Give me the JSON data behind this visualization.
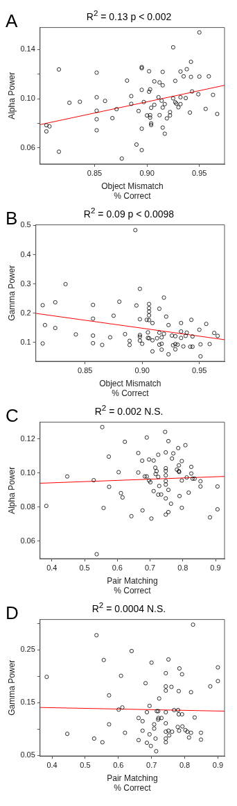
{
  "chart_data": [
    {
      "type": "scatter",
      "title": "R$^{2}$ = 0.13 p < 0.002",
      "annotations": [
        "A"
      ],
      "xlabel": "Object Mismatch\n% Correct",
      "ylabel": "Alpha Power",
      "xlim": [
        0.798,
        0.974
      ],
      "ylim": [
        0.047,
        0.158
      ],
      "xticks": [
        {
          "value": 0.85,
          "label": "0.85"
        },
        {
          "value": 0.9,
          "label": "0.90"
        },
        {
          "value": 0.95,
          "label": "0.95"
        }
      ],
      "yticks": [
        {
          "value": 0.06,
          "label": "0.06"
        },
        {
          "value": 0.08,
          "label": null
        },
        {
          "value": 0.1,
          "label": "0.10"
        },
        {
          "value": 0.12,
          "label": null
        },
        {
          "value": 0.14,
          "label": "0.14"
        }
      ],
      "series": [
        {
          "color": "#000000",
          "marker": "circle",
          "x": [
            0.804,
            0.804,
            0.807,
            0.816,
            0.816,
            0.826,
            0.836,
            0.852,
            0.852,
            0.852,
            0.852,
            0.852,
            0.86,
            0.867,
            0.871,
            0.876,
            0.881,
            0.885,
            0.885,
            0.89,
            0.892,
            0.895,
            0.895,
            0.895,
            0.895,
            0.895,
            0.897,
            0.9,
            0.902,
            0.902,
            0.903,
            0.903,
            0.903,
            0.904,
            0.904,
            0.904,
            0.907,
            0.907,
            0.911,
            0.912,
            0.912,
            0.914,
            0.915,
            0.915,
            0.915,
            0.915,
            0.917,
            0.917,
            0.919,
            0.922,
            0.922,
            0.925,
            0.925,
            0.927,
            0.927,
            0.928,
            0.93,
            0.932,
            0.932,
            0.932,
            0.935,
            0.937,
            0.938,
            0.941,
            0.942,
            0.942,
            0.943,
            0.949,
            0.95,
            0.95,
            0.956,
            0.959,
            0.963,
            0.967
          ],
          "values": [
            0.0785,
            0.0735,
            0.0776,
            0.1239,
            0.057,
            0.0968,
            0.0976,
            0.1213,
            0.1013,
            0.0903,
            0.0834,
            0.0744,
            0.0983,
            0.0843,
            0.0916,
            0.0514,
            0.1148,
            0.1022,
            0.0959,
            0.0628,
            0.0901,
            0.1258,
            0.1249,
            0.1073,
            0.0757,
            0.0583,
            0.0974,
            0.0865,
            0.1224,
            0.1058,
            0.1077,
            0.0867,
            0.0847,
            0.0927,
            0.08,
            0.0787,
            0.1142,
            0.0951,
            0.1013,
            0.1133,
            0.0867,
            0.0985,
            0.1219,
            0.111,
            0.0929,
            0.0766,
            0.0957,
            0.0716,
            0.0841,
            0.0892,
            0.0865,
            0.1004,
            0.1419,
            0.1146,
            0.0972,
            0.0961,
            0.0931,
            0.1222,
            0.1013,
            0.0957,
            0.1183,
            0.1006,
            0.1241,
            0.0888,
            0.1301,
            0.1178,
            0.106,
            0.1037,
            0.154,
            0.1181,
            0.0918,
            0.1183,
            0.1032,
            0.0877
          ]
        },
        {
          "type": "line",
          "color": "#ff0000",
          "x": [
            0.798,
            0.974
          ],
          "values": [
            0.079,
            0.111
          ]
        }
      ]
    },
    {
      "type": "scatter",
      "title": "R$^{2}$ = 0.09 p < 0.0098",
      "annotations": [
        "B"
      ],
      "xlabel": "Object Mismatch\n% Correct",
      "ylabel": "Gamma Power",
      "xlim": [
        0.807,
        0.972
      ],
      "ylim": [
        0.035,
        0.502
      ],
      "xticks": [
        {
          "value": 0.85,
          "label": "0.85"
        },
        {
          "value": 0.9,
          "label": "0.90"
        },
        {
          "value": 0.95,
          "label": "0.95"
        }
      ],
      "yticks": [
        0.1,
        0.2,
        0.3,
        0.4,
        0.5
      ],
      "series": [
        {
          "color": "#000000",
          "marker": "circle",
          "x": [
            0.813,
            0.813,
            0.815,
            0.824,
            0.824,
            0.833,
            0.842,
            0.857,
            0.857,
            0.857,
            0.857,
            0.865,
            0.872,
            0.875,
            0.88,
            0.885,
            0.889,
            0.889,
            0.894,
            0.895,
            0.898,
            0.898,
            0.898,
            0.898,
            0.898,
            0.9,
            0.904,
            0.905,
            0.905,
            0.906,
            0.906,
            0.906,
            0.906,
            0.906,
            0.906,
            0.909,
            0.909,
            0.909,
            0.913,
            0.915,
            0.915,
            0.915,
            0.917,
            0.917,
            0.917,
            0.919,
            0.919,
            0.921,
            0.923,
            0.923,
            0.926,
            0.927,
            0.929,
            0.929,
            0.929,
            0.931,
            0.934,
            0.934,
            0.934,
            0.936,
            0.938,
            0.939,
            0.942,
            0.943,
            0.944,
            0.944,
            0.95,
            0.951,
            0.951,
            0.956,
            0.959,
            0.963,
            0.966
          ],
          "values": [
            0.227,
            0.096,
            0.159,
            0.237,
            0.149,
            0.299,
            0.127,
            0.228,
            0.181,
            0.123,
            0.097,
            0.091,
            0.117,
            0.191,
            0.239,
            0.128,
            0.105,
            0.091,
            0.484,
            0.226,
            0.283,
            0.179,
            0.125,
            0.119,
            0.106,
            0.095,
            0.177,
            0.134,
            0.115,
            0.231,
            0.217,
            0.205,
            0.192,
            0.176,
            0.114,
            0.166,
            0.107,
            0.069,
            0.114,
            0.215,
            0.133,
            0.092,
            0.117,
            0.095,
            0.075,
            0.253,
            0.129,
            0.188,
            0.159,
            0.059,
            0.123,
            0.09,
            0.121,
            0.094,
            0.076,
            0.092,
            0.166,
            0.137,
            0.115,
            0.086,
            0.122,
            0.133,
            0.085,
            0.177,
            0.12,
            0.085,
            0.143,
            0.093,
            0.052,
            0.163,
            0.094,
            0.132,
            0.122
          ]
        },
        {
          "type": "line",
          "color": "#ff0000",
          "x": [
            0.807,
            0.972
          ],
          "values": [
            0.199,
            0.109
          ]
        }
      ]
    },
    {
      "type": "scatter",
      "title": "R$^{2}$ = 0.002  N.S.",
      "annotations": [
        "C"
      ],
      "xlabel": "Pair Matching\n% Correct",
      "ylabel": "Alpha Power",
      "xlim": [
        0.364,
        0.9275
      ],
      "ylim": [
        0.0498,
        0.1298
      ],
      "xticks": [
        0.4,
        0.5,
        0.6,
        0.7,
        0.8,
        0.9
      ],
      "yticks": [
        {
          "value": 0.06,
          "label": "0.06"
        },
        {
          "value": 0.08,
          "label": "0.08"
        },
        {
          "value": 0.1,
          "label": "0.10"
        },
        {
          "value": 0.12,
          "label": "0.12"
        }
      ],
      "series": [
        {
          "color": "#000000",
          "marker": "circle",
          "x": [
            0.383,
            0.447,
            0.528,
            0.537,
            0.554,
            0.558,
            0.574,
            0.575,
            0.604,
            0.611,
            0.616,
            0.623,
            0.643,
            0.664,
            0.664,
            0.676,
            0.677,
            0.684,
            0.69,
            0.69,
            0.697,
            0.697,
            0.701,
            0.704,
            0.711,
            0.711,
            0.716,
            0.717,
            0.72,
            0.725,
            0.725,
            0.725,
            0.728,
            0.734,
            0.746,
            0.748,
            0.748,
            0.748,
            0.748,
            0.748,
            0.748,
            0.748,
            0.748,
            0.756,
            0.756,
            0.756,
            0.764,
            0.767,
            0.771,
            0.782,
            0.786,
            0.788,
            0.788,
            0.789,
            0.79,
            0.797,
            0.797,
            0.797,
            0.808,
            0.812,
            0.818,
            0.826,
            0.826,
            0.83,
            0.836,
            0.854,
            0.854,
            0.883,
            0.906,
            0.906
          ],
          "values": [
            0.0807,
            0.098,
            0.0958,
            0.0524,
            0.1269,
            0.0795,
            0.1096,
            0.0919,
            0.1005,
            0.0882,
            0.0857,
            0.1183,
            0.0747,
            0.1117,
            0.1003,
            0.1072,
            0.0781,
            0.098,
            0.098,
            0.1208,
            0.1079,
            0.0956,
            0.0946,
            0.0733,
            0.1073,
            0.0894,
            0.1031,
            0.0994,
            0.1011,
            0.1107,
            0.0977,
            0.0873,
            0.0924,
            0.0874,
            0.1241,
            0.1121,
            0.1028,
            0.1012,
            0.0986,
            0.0953,
            0.0932,
            0.0851,
            0.0756,
            0.1187,
            0.0901,
            0.0771,
            0.082,
            0.1085,
            0.1115,
            0.102,
            0.1146,
            0.1045,
            0.1011,
            0.1006,
            0.0865,
            0.107,
            0.0956,
            0.0796,
            0.1163,
            0.0974,
            0.0885,
            0.1036,
            0.0997,
            0.0967,
            0.0967,
            0.0952,
            0.0921,
            0.074,
            0.0921,
            0.0787
          ]
        },
        {
          "type": "line",
          "color": "#ff0000",
          "x": [
            0.364,
            0.9275
          ],
          "values": [
            0.094,
            0.098
          ]
        }
      ]
    },
    {
      "type": "scatter",
      "title": "R$^{2}$ = 0.0004  N.S.",
      "annotations": [
        "D"
      ],
      "xlabel": "Pair Matching\n% Correct",
      "ylabel": "Gamma Power",
      "xlim": [
        0.364,
        0.92
      ],
      "ylim": [
        0.049,
        0.3078
      ],
      "xticks": [
        0.4,
        0.5,
        0.6,
        0.7,
        0.8,
        0.9
      ],
      "yticks": [
        {
          "value": 0.05,
          "label": "0.05"
        },
        {
          "value": 0.1,
          "label": null
        },
        {
          "value": 0.15,
          "label": "0.15"
        },
        {
          "value": 0.2,
          "label": null
        },
        {
          "value": 0.25,
          "label": "0.25"
        },
        {
          "value": 0.3,
          "label": null
        }
      ],
      "series": [
        {
          "color": "#000000",
          "marker": "circle",
          "x": [
            0.384,
            0.446,
            0.527,
            0.534,
            0.552,
            0.556,
            0.572,
            0.572,
            0.601,
            0.608,
            0.612,
            0.62,
            0.64,
            0.661,
            0.661,
            0.673,
            0.673,
            0.682,
            0.686,
            0.686,
            0.694,
            0.694,
            0.698,
            0.7,
            0.708,
            0.708,
            0.712,
            0.714,
            0.716,
            0.72,
            0.72,
            0.721,
            0.723,
            0.73,
            0.743,
            0.743,
            0.743,
            0.743,
            0.743,
            0.743,
            0.743,
            0.743,
            0.751,
            0.751,
            0.753,
            0.76,
            0.762,
            0.768,
            0.78,
            0.779,
            0.782,
            0.783,
            0.784,
            0.782,
            0.792,
            0.792,
            0.793,
            0.802,
            0.808,
            0.813,
            0.819,
            0.819,
            0.83,
            0.849,
            0.849,
            0.825,
            0.877,
            0.9,
            0.9
          ],
          "values": [
            0.199,
            0.091,
            0.082,
            0.278,
            0.075,
            0.231,
            0.164,
            0.109,
            0.137,
            0.201,
            0.141,
            0.093,
            0.248,
            0.121,
            0.079,
            0.115,
            0.097,
            0.187,
            0.132,
            0.074,
            0.144,
            0.09,
            0.068,
            0.226,
            0.109,
            0.101,
            0.082,
            0.058,
            0.134,
            0.134,
            0.118,
            0.121,
            0.158,
            0.121,
            0.206,
            0.181,
            0.173,
            0.132,
            0.111,
            0.095,
            0.082,
            0.075,
            0.232,
            0.097,
            0.088,
            0.18,
            0.095,
            0.136,
            0.136,
            0.104,
            0.172,
            0.097,
            0.215,
            0.128,
            0.128,
            0.204,
            0.105,
            0.098,
            0.095,
            0.084,
            0.093,
            0.17,
            0.122,
            0.093,
            0.08,
            0.298,
            0.181,
            0.217,
            0.191
          ]
        },
        {
          "type": "line",
          "color": "#ff0000",
          "x": [
            0.364,
            0.92
          ],
          "values": [
            0.141,
            0.134
          ]
        }
      ]
    }
  ]
}
